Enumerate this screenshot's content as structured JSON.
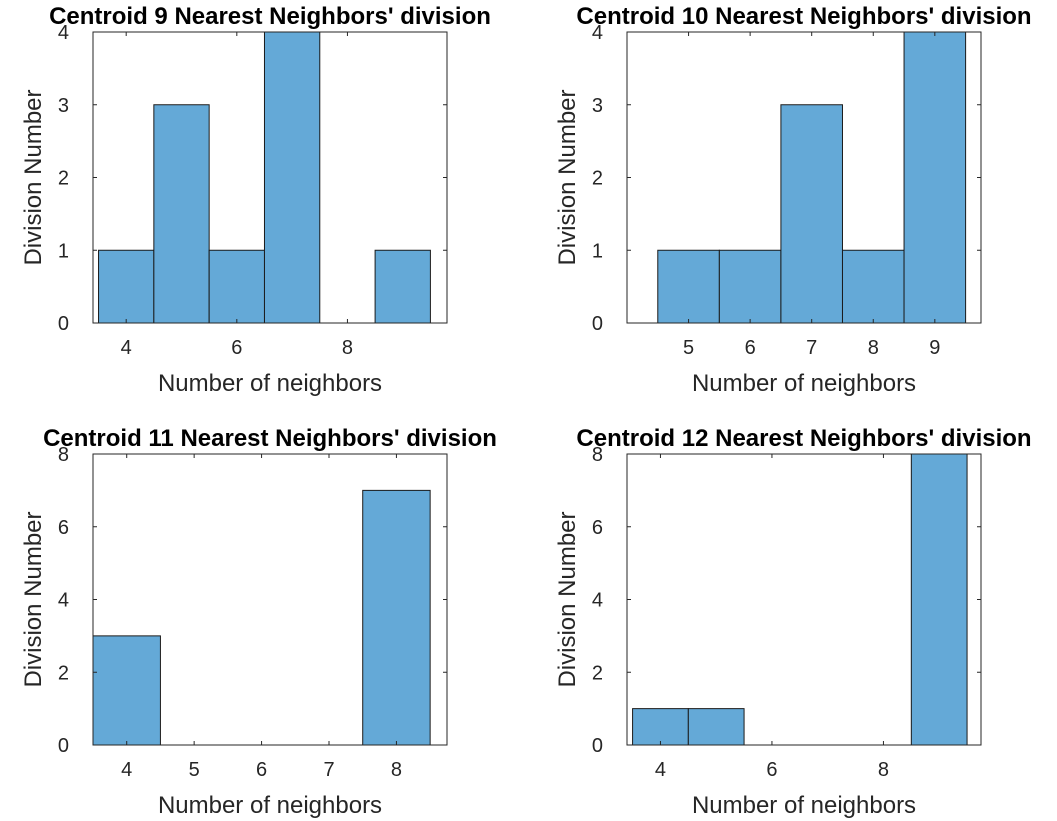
{
  "chart_data": [
    {
      "type": "bar",
      "title": "Centroid 9 Nearest Neighbors' division",
      "xlabel": "Number of neighbors",
      "ylabel": "Division Number",
      "categories": [
        4,
        5,
        6,
        7,
        8,
        9
      ],
      "values": [
        1,
        3,
        1,
        4,
        0,
        1
      ],
      "xlim": [
        3.4,
        9.8
      ],
      "ylim": [
        0,
        4
      ],
      "xticks": [
        4,
        6,
        8
      ],
      "yticks": [
        0,
        1,
        2,
        3,
        4
      ],
      "grid": false,
      "bar_color": "#64a9d7"
    },
    {
      "type": "bar",
      "title": "Centroid 10 Nearest Neighbors' division",
      "xlabel": "Number of neighbors",
      "ylabel": "Division Number",
      "categories": [
        5,
        6,
        7,
        8,
        9
      ],
      "values": [
        1,
        1,
        3,
        1,
        4
      ],
      "xlim": [
        4.0,
        9.75
      ],
      "ylim": [
        0,
        4
      ],
      "xticks": [
        5,
        6,
        7,
        8,
        9
      ],
      "yticks": [
        0,
        1,
        2,
        3,
        4
      ],
      "grid": false,
      "bar_color": "#64a9d7"
    },
    {
      "type": "bar",
      "title": "Centroid 11 Nearest Neighbors' division",
      "xlabel": "Number of neighbors",
      "ylabel": "Division Number",
      "categories": [
        4,
        5,
        6,
        7,
        8
      ],
      "values": [
        3,
        0,
        0,
        0,
        7
      ],
      "xlim": [
        3.5,
        8.75
      ],
      "ylim": [
        0,
        8
      ],
      "xticks": [
        4,
        5,
        6,
        7,
        8
      ],
      "yticks": [
        0,
        2,
        4,
        6,
        8
      ],
      "grid": false,
      "bar_color": "#64a9d7"
    },
    {
      "type": "bar",
      "title": "Centroid 12 Nearest Neighbors' division",
      "xlabel": "Number of neighbors",
      "ylabel": "Division Number",
      "categories": [
        4,
        5,
        6,
        7,
        8,
        9
      ],
      "values": [
        1,
        1,
        0,
        0,
        0,
        8
      ],
      "xlim": [
        3.4,
        9.75
      ],
      "ylim": [
        0,
        8
      ],
      "xticks": [
        4,
        6,
        8
      ],
      "yticks": [
        0,
        2,
        4,
        6,
        8
      ],
      "grid": false,
      "bar_color": "#64a9d7"
    }
  ]
}
